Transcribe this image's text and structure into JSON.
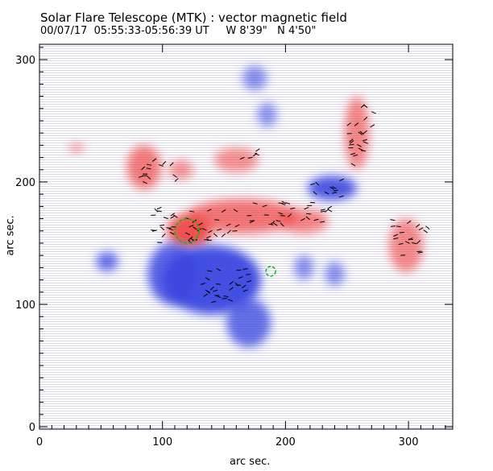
{
  "chart_data": {
    "type": "heatmap",
    "title": "Solar Flare Telescope (MTK) : vector magnetic field",
    "subtitle": "00/07/17  05:55:33-05:56:39 UT     W 8'39\"   N 4'50\"",
    "xlabel": "arc sec.",
    "ylabel": "arc sec.",
    "xlim": [
      0,
      336
    ],
    "ylim": [
      0,
      313
    ],
    "xticks": [
      0,
      100,
      200,
      300
    ],
    "yticks": [
      0,
      100,
      200,
      300
    ],
    "colors": {
      "positive": "#f04848",
      "negative": "#3a46e0",
      "contour": "#00c000",
      "vector": "#000000"
    },
    "positive_regions": [
      {
        "x": 122,
        "y": 160,
        "rx": 18,
        "ry": 14,
        "strength": 1.0
      },
      {
        "x": 85,
        "y": 212,
        "rx": 14,
        "ry": 18,
        "strength": 0.6
      },
      {
        "x": 165,
        "y": 172,
        "rx": 45,
        "ry": 14,
        "strength": 0.65
      },
      {
        "x": 215,
        "y": 168,
        "rx": 20,
        "ry": 10,
        "strength": 0.5
      },
      {
        "x": 258,
        "y": 240,
        "rx": 10,
        "ry": 30,
        "strength": 0.5
      },
      {
        "x": 298,
        "y": 148,
        "rx": 14,
        "ry": 22,
        "strength": 0.45
      },
      {
        "x": 30,
        "y": 228,
        "rx": 6,
        "ry": 4,
        "strength": 0.35
      },
      {
        "x": 115,
        "y": 210,
        "rx": 10,
        "ry": 8,
        "strength": 0.4
      },
      {
        "x": 160,
        "y": 218,
        "rx": 18,
        "ry": 10,
        "strength": 0.4
      }
    ],
    "negative_regions": [
      {
        "x": 140,
        "y": 120,
        "rx": 40,
        "ry": 28,
        "strength": 1.0
      },
      {
        "x": 108,
        "y": 125,
        "rx": 20,
        "ry": 25,
        "strength": 0.8
      },
      {
        "x": 170,
        "y": 85,
        "rx": 18,
        "ry": 20,
        "strength": 0.7
      },
      {
        "x": 55,
        "y": 135,
        "rx": 9,
        "ry": 8,
        "strength": 0.7
      },
      {
        "x": 238,
        "y": 195,
        "rx": 20,
        "ry": 10,
        "strength": 0.9
      },
      {
        "x": 175,
        "y": 285,
        "rx": 10,
        "ry": 10,
        "strength": 0.4
      },
      {
        "x": 185,
        "y": 255,
        "rx": 8,
        "ry": 10,
        "strength": 0.35
      },
      {
        "x": 240,
        "y": 125,
        "rx": 8,
        "ry": 10,
        "strength": 0.4
      },
      {
        "x": 215,
        "y": 130,
        "rx": 8,
        "ry": 10,
        "strength": 0.4
      }
    ],
    "vector_clusters": [
      {
        "x": 125,
        "y": 165,
        "w": 70,
        "h": 30
      },
      {
        "x": 200,
        "y": 175,
        "w": 70,
        "h": 20
      },
      {
        "x": 150,
        "y": 115,
        "w": 40,
        "h": 30
      },
      {
        "x": 260,
        "y": 240,
        "w": 20,
        "h": 50
      },
      {
        "x": 300,
        "y": 155,
        "w": 30,
        "h": 30
      },
      {
        "x": 95,
        "y": 210,
        "w": 30,
        "h": 20
      },
      {
        "x": 230,
        "y": 195,
        "w": 30,
        "h": 15
      },
      {
        "x": 170,
        "y": 220,
        "w": 20,
        "h": 10
      }
    ],
    "contours": [
      {
        "x": 120,
        "y": 160,
        "r": 10
      },
      {
        "x": 188,
        "y": 127,
        "r": 4
      }
    ]
  }
}
